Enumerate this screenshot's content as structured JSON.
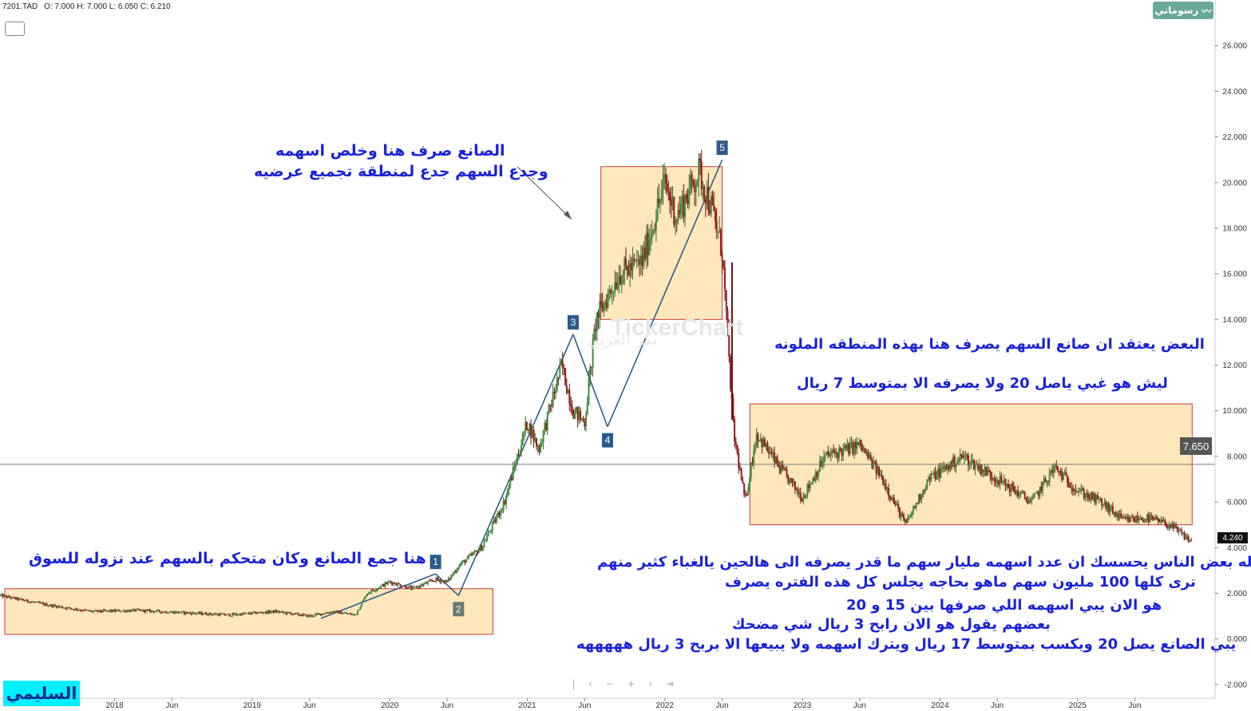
{
  "header": {
    "symbol": "7201.TAD",
    "ohlc": "O: 7.000 H: 7.000 L: 6.050 C: 6.210"
  },
  "brand_label": "رسوماتي",
  "author_label": "السليمي",
  "watermark": "TickerChart",
  "watermark_sub": "بكر العربي",
  "current_price_label": "7.650",
  "last_price_label": "4.240",
  "annotations": {
    "top_line1": "الصانع صرف هنا  وخلص اسهمه",
    "top_line2": "وجدع السهم جدع لمنطقة تجميع عرضيه",
    "left": "هنا جمع الصانع وكان متحكم بالسهم عند نزوله للسوق",
    "right1": "البعض يعتقد ان صانع السهم يصرف هنا بهذه المنطقه الملونه",
    "right2": "ليش هو  غبي ياصل 20 ولا يصرفه الا بمتوسط 7 ريال",
    "bottom1": "والله بعض الناس يحسسك ان عدد اسهمه مليار سهم ما قدر يصرفه الى هالحين يالغباء كثير منهم",
    "bottom2": "ترى كلها 100 مليون سهم  ماهو بحاجه يجلس كل هذه الفتره يصرف",
    "bottom3": "هو الان يبي اسهمه اللي صرفها  بين 15 و 20",
    "bottom4": "بعضهم يقول هو الان  رابح 3 ريال شي مضحك",
    "bottom5": "يبي الصانع يصل 20 ويكسب بمتوسط 17 ريال ويترك اسهمه ولا يبيعها الا بربح 3 ريال هههههه"
  },
  "chart_data": {
    "type": "candlestick",
    "symbol": "7201.TAD",
    "ylim": [
      -2.6,
      28.0
    ],
    "y_ticks": [
      "-2.000",
      "0.000",
      "2.000",
      "4.000",
      "6.000",
      "8.000",
      "10.000",
      "12.000",
      "14.000",
      "16.000",
      "18.000",
      "20.000",
      "22.000",
      "24.000",
      "26.000"
    ],
    "x_ticks": [
      "2018",
      "Jun",
      "2019",
      "Jun",
      "2020",
      "Jun",
      "2021",
      "Jun",
      "2022",
      "Jun",
      "2023",
      "Jun",
      "2024",
      "Jun",
      "2025",
      "Jun"
    ],
    "x_tick_dates": [
      "2018-01",
      "2018-06",
      "2019-01",
      "2019-06",
      "2020-01",
      "2020-06",
      "2021-01",
      "2021-06",
      "2022-01",
      "2022-06",
      "2023-01",
      "2023-06",
      "2024-01",
      "2024-06",
      "2025-01",
      "2025-06"
    ],
    "xlim": [
      "2017-03",
      "2026-01"
    ],
    "grid": false,
    "price_path": [
      [
        "2017-03",
        1.9
      ],
      [
        "2017-07",
        1.5
      ],
      [
        "2017-11",
        1.2
      ],
      [
        "2018-03",
        1.25
      ],
      [
        "2018-07",
        1.15
      ],
      [
        "2018-11",
        1.05
      ],
      [
        "2019-03",
        1.2
      ],
      [
        "2019-06",
        1.0
      ],
      [
        "2019-08",
        1.2
      ],
      [
        "2019-10",
        1.05
      ],
      [
        "2019-11",
        2.0
      ],
      [
        "2020-01",
        2.5
      ],
      [
        "2020-03",
        2.2
      ],
      [
        "2020-05",
        2.6
      ],
      [
        "2020-06",
        2.5
      ],
      [
        "2020-07",
        3.2
      ],
      [
        "2020-09",
        4.0
      ],
      [
        "2020-11",
        6.0
      ],
      [
        "2021-01",
        9.5
      ],
      [
        "2021-02",
        8.3
      ],
      [
        "2021-04",
        12.0
      ],
      [
        "2021-05",
        10.0
      ],
      [
        "2021-06",
        9.5
      ],
      [
        "2021-07",
        14.0
      ],
      [
        "2021-09",
        16.0
      ],
      [
        "2021-11",
        16.5
      ],
      [
        "2022-01",
        20.0
      ],
      [
        "2022-02",
        18.5
      ],
      [
        "2022-04",
        20.5
      ],
      [
        "2022-05",
        19.0
      ],
      [
        "2022-06",
        17.0
      ],
      [
        "2022-07",
        9.0
      ],
      [
        "2022-08",
        6.0
      ],
      [
        "2022-09",
        9.0
      ],
      [
        "2022-11",
        7.5
      ],
      [
        "2023-01",
        6.2
      ],
      [
        "2023-03",
        8.0
      ],
      [
        "2023-06",
        8.5
      ],
      [
        "2023-08",
        7.0
      ],
      [
        "2023-10",
        5.0
      ],
      [
        "2023-12",
        7.0
      ],
      [
        "2024-03",
        8.0
      ],
      [
        "2024-06",
        7.0
      ],
      [
        "2024-09",
        6.0
      ],
      [
        "2024-11",
        7.5
      ],
      [
        "2025-01",
        6.5
      ],
      [
        "2025-03",
        6.0
      ],
      [
        "2025-05",
        5.2
      ],
      [
        "2025-07",
        5.3
      ],
      [
        "2025-09",
        5.0
      ],
      [
        "2025-11",
        4.24
      ]
    ],
    "horizontal_line": 7.65,
    "last_price": 4.24,
    "zones": [
      {
        "x": [
          "2017-03",
          "2020-10"
        ],
        "y": [
          0.2,
          2.2
        ]
      },
      {
        "x": [
          "2021-07",
          "2022-06"
        ],
        "y": [
          14.0,
          20.7
        ]
      },
      {
        "x": [
          "2022-08",
          "2025-11"
        ],
        "y": [
          5.0,
          10.3
        ]
      }
    ],
    "wave_points": [
      {
        "label": "",
        "date": "2019-07",
        "value": 0.9
      },
      {
        "label": "1",
        "date": "2020-05",
        "value": 2.85
      },
      {
        "label": "2",
        "date": "2020-07",
        "value": 1.9
      },
      {
        "label": "3",
        "date": "2021-05",
        "value": 13.35
      },
      {
        "label": "4",
        "date": "2021-08",
        "value": 9.3
      },
      {
        "label": "5",
        "date": "2022-06",
        "value": 21.0
      }
    ]
  }
}
